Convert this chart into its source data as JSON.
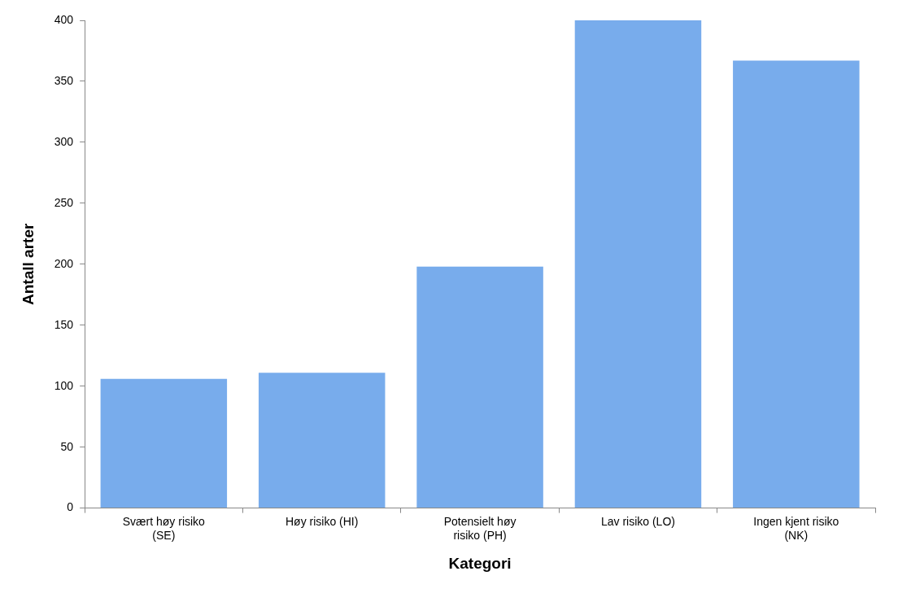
{
  "chart_data": {
    "type": "bar",
    "xlabel": "Kategori",
    "ylabel": "Antall arter",
    "categories": [
      "Svært høy risiko (SE)",
      "Høy risiko (HI)",
      "Potensielt høy risiko (PH)",
      "Lav risiko (LO)",
      "Ingen kjent risiko (NK)"
    ],
    "values": [
      106,
      111,
      198,
      400,
      367
    ],
    "color": "#78acec",
    "ylim": [
      0,
      400
    ],
    "yticks": [
      0,
      50,
      100,
      150,
      200,
      250,
      300,
      350,
      400
    ],
    "grid": false
  }
}
